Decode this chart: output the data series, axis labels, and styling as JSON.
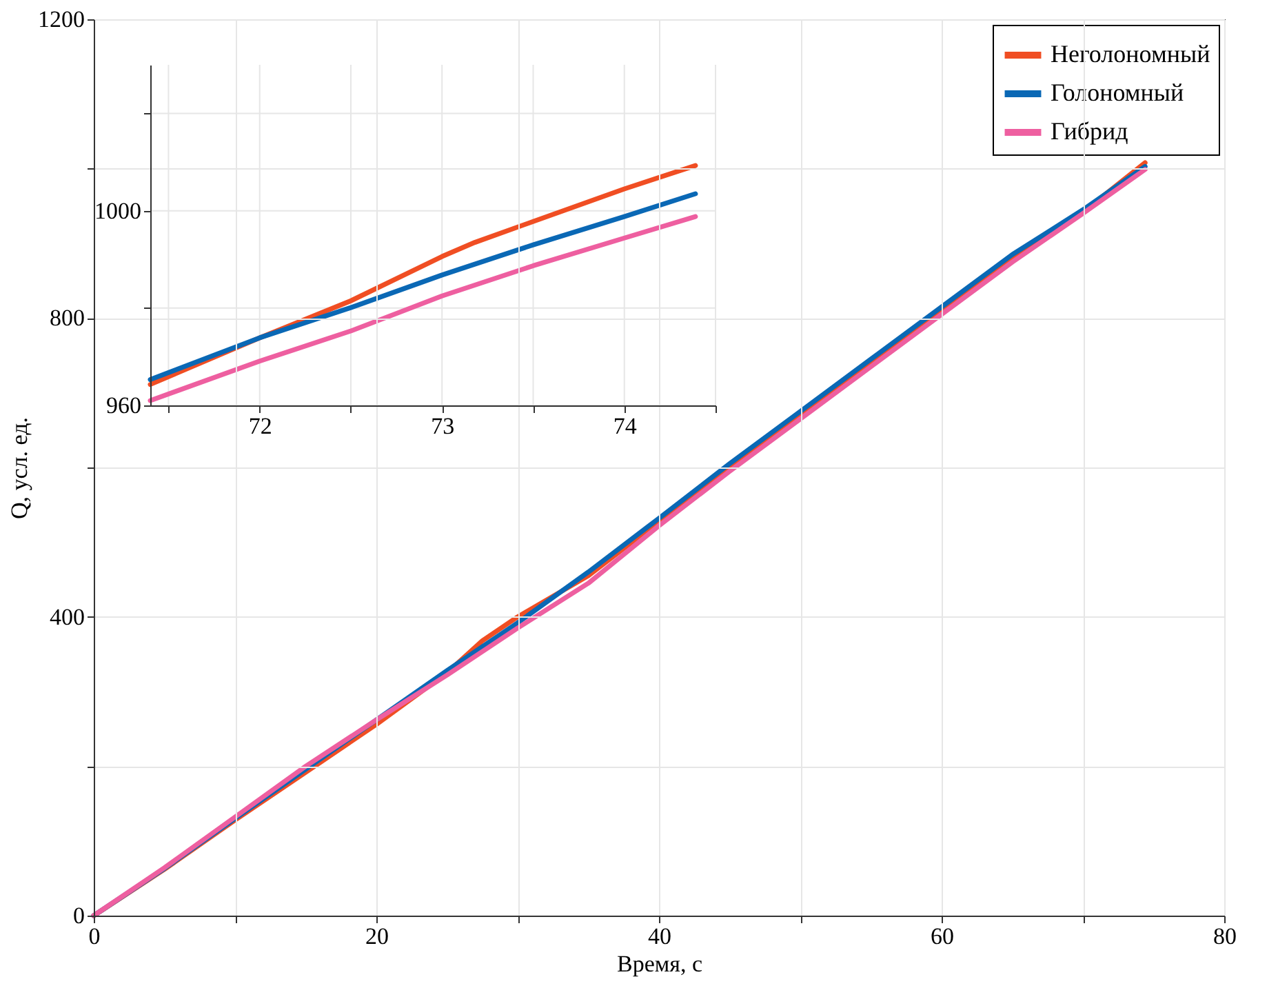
{
  "chart_data": [
    {
      "type": "line",
      "xlabel": "Время, с",
      "ylabel": "Q, усл. ед.",
      "xlim": [
        0,
        80
      ],
      "ylim": [
        0,
        1200
      ],
      "xticks": [
        0,
        {
          "value": 10,
          "label": null
        },
        20,
        {
          "value": 30,
          "label": null
        },
        40,
        {
          "value": 50,
          "label": null
        },
        60,
        {
          "value": 70,
          "label": null
        },
        80
      ],
      "yticks": [
        0,
        {
          "value": 200,
          "label": null
        },
        400,
        {
          "value": 600,
          "label": null
        },
        800,
        {
          "value": 1000,
          "label": null
        },
        1200
      ],
      "grid": true,
      "legend": "top right",
      "series": [
        {
          "name": "Неголономный",
          "color": "#f04e23",
          "x": [
            0,
            5,
            10,
            15,
            20,
            25,
            27.5,
            30,
            35,
            40,
            45,
            50,
            55,
            60,
            65,
            70,
            74.4
          ],
          "values": [
            0,
            62,
            128,
            192,
            256,
            325,
            368,
            400,
            455,
            528,
            600,
            670,
            740,
            810,
            880,
            942,
            1008
          ]
        },
        {
          "name": "Голономный",
          "color": "#0a68b5",
          "x": [
            0,
            5,
            10,
            15,
            20,
            25,
            30,
            35,
            40,
            45,
            50,
            55,
            60,
            65,
            70,
            74.4
          ],
          "values": [
            0,
            63,
            130,
            196,
            262,
            328,
            392,
            460,
            532,
            605,
            675,
            745,
            815,
            885,
            945,
            1003
          ]
        },
        {
          "name": "Гибрид",
          "color": "#ee5fa0",
          "x": [
            0,
            5,
            10,
            15,
            20,
            25,
            30,
            35,
            40,
            45,
            50,
            55,
            60,
            65,
            70,
            74.4
          ],
          "values": [
            0,
            64,
            132,
            200,
            262,
            322,
            385,
            445,
            522,
            595,
            665,
            735,
            805,
            875,
            940,
            999
          ]
        }
      ]
    },
    {
      "type": "line",
      "xlim": [
        71.4,
        74.5
      ],
      "ylim": [
        960,
        1030
      ],
      "xticks": [
        {
          "value": 71.5,
          "label": null
        },
        72,
        {
          "value": 72.5,
          "label": null
        },
        73,
        {
          "value": 73.5,
          "label": null
        },
        74,
        {
          "value": 74.5,
          "label": null
        }
      ],
      "yticks": [
        960,
        {
          "value": 980,
          "label": null
        },
        1000,
        {
          "value": 1020,
          "label": null
        }
      ],
      "grid": true,
      "series": [
        {
          "color": "#f04e23",
          "x": [
            71.4,
            72,
            72.5,
            73,
            73.18,
            73.5,
            74,
            74.39
          ],
          "values": [
            964.3,
            973.9,
            981.5,
            990.6,
            993.5,
            997.8,
            1004.5,
            1009.3
          ]
        },
        {
          "color": "#0a68b5",
          "x": [
            71.4,
            72,
            72.5,
            73,
            73.5,
            74,
            74.39
          ],
          "values": [
            965.3,
            973.9,
            980.1,
            986.8,
            993,
            998.8,
            1003.5
          ]
        },
        {
          "color": "#ee5fa0",
          "x": [
            71.4,
            72,
            72.5,
            73,
            73.5,
            74,
            74.39
          ],
          "values": [
            961,
            969.1,
            975.3,
            982.5,
            988.7,
            994.4,
            998.8
          ]
        }
      ]
    }
  ]
}
